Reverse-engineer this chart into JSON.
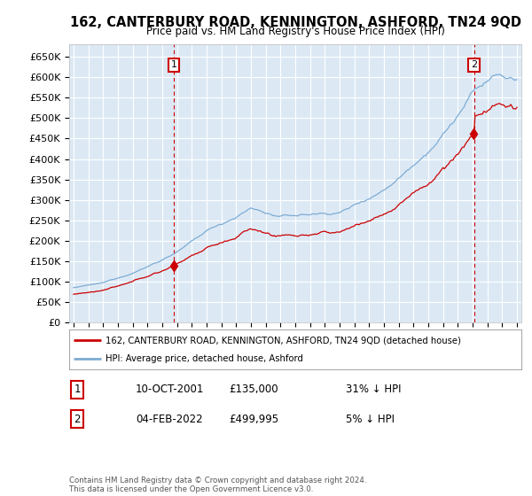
{
  "title": "162, CANTERBURY ROAD, KENNINGTON, ASHFORD, TN24 9QD",
  "subtitle": "Price paid vs. HM Land Registry's House Price Index (HPI)",
  "ytick_labels": [
    "£0",
    "£50K",
    "£100K",
    "£150K",
    "£200K",
    "£250K",
    "£300K",
    "£350K",
    "£400K",
    "£450K",
    "£500K",
    "£550K",
    "£600K",
    "£650K"
  ],
  "ytick_values": [
    0,
    50000,
    100000,
    150000,
    200000,
    250000,
    300000,
    350000,
    400000,
    450000,
    500000,
    550000,
    600000,
    650000
  ],
  "x_start_year": 1995,
  "x_end_year": 2025,
  "plot_bg_color": "#dce9f5",
  "grid_color": "#ffffff",
  "hpi_color": "#7eacd4",
  "price_color": "#cc0000",
  "transaction1_year": 2001.78,
  "transaction1_price": 135000,
  "transaction2_year": 2022.09,
  "transaction2_price": 499995,
  "legend_line1": "162, CANTERBURY ROAD, KENNINGTON, ASHFORD, TN24 9QD (detached house)",
  "legend_line2": "HPI: Average price, detached house, Ashford",
  "annotation1_date": "10-OCT-2001",
  "annotation1_price": "£135,000",
  "annotation1_hpi": "31% ↓ HPI",
  "annotation2_date": "04-FEB-2022",
  "annotation2_price": "£499,995",
  "annotation2_hpi": "5% ↓ HPI",
  "footer": "Contains HM Land Registry data © Crown copyright and database right 2024.\nThis data is licensed under the Open Government Licence v3.0."
}
